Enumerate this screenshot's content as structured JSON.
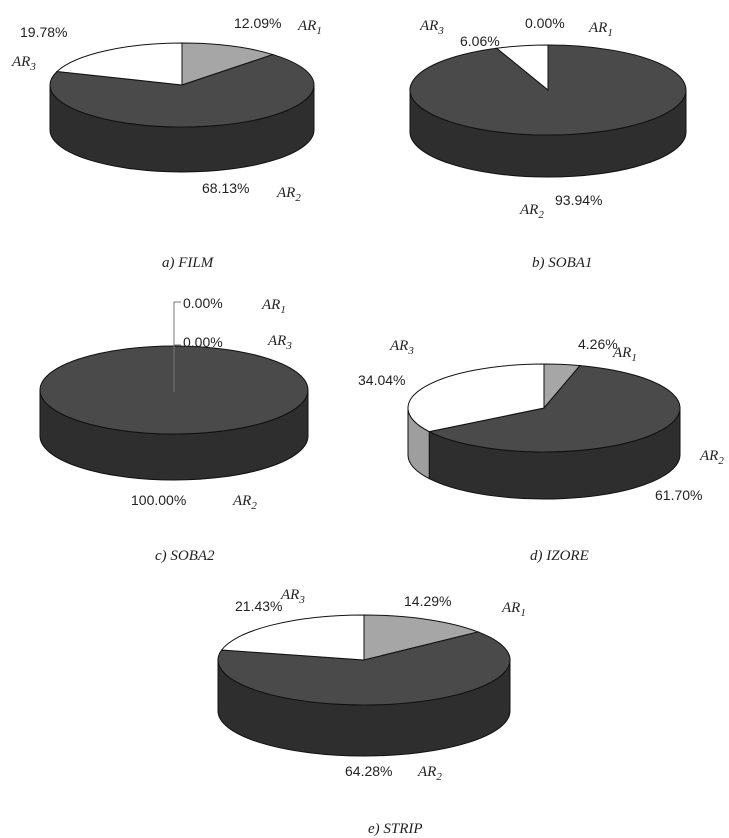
{
  "chart_data": [
    {
      "type": "pie",
      "caption": "a) FILM",
      "slices": [
        {
          "label": "AR1",
          "value": 12.09,
          "value_label": "12.09%",
          "color": "#a6a6a6"
        },
        {
          "label": "AR2",
          "value": 68.13,
          "value_label": "68.13%",
          "color": "#4a4a4a"
        },
        {
          "label": "AR3",
          "value": 19.78,
          "value_label": "19.78%",
          "color": "#ffffff"
        }
      ]
    },
    {
      "type": "pie",
      "caption": "b) SOBA1",
      "slices": [
        {
          "label": "AR1",
          "value": 0.0,
          "value_label": "0.00%",
          "color": "#a6a6a6"
        },
        {
          "label": "AR2",
          "value": 93.94,
          "value_label": "93.94%",
          "color": "#4a4a4a"
        },
        {
          "label": "AR3",
          "value": 6.06,
          "value_label": "6.06%",
          "color": "#ffffff"
        }
      ]
    },
    {
      "type": "pie",
      "caption": "c) SOBA2",
      "slices": [
        {
          "label": "AR1",
          "value": 0.0,
          "value_label": "0.00%",
          "color": "#a6a6a6"
        },
        {
          "label": "AR2",
          "value": 100.0,
          "value_label": "100.00%",
          "color": "#4a4a4a"
        },
        {
          "label": "AR3",
          "value": 0.0,
          "value_label": "0.00%",
          "color": "#ffffff"
        }
      ]
    },
    {
      "type": "pie",
      "caption": "d) IZORE",
      "slices": [
        {
          "label": "AR1",
          "value": 4.26,
          "value_label": "4.26%",
          "color": "#a6a6a6"
        },
        {
          "label": "AR2",
          "value": 61.7,
          "value_label": "61.70%",
          "color": "#4a4a4a"
        },
        {
          "label": "AR3",
          "value": 34.04,
          "value_label": "34.04%",
          "color": "#ffffff"
        }
      ]
    },
    {
      "type": "pie",
      "caption": "e) STRIP",
      "slices": [
        {
          "label": "AR1",
          "value": 14.29,
          "value_label": "14.29%",
          "color": "#a6a6a6"
        },
        {
          "label": "AR2",
          "value": 64.28,
          "value_label": "64.28%",
          "color": "#4a4a4a"
        },
        {
          "label": "AR3",
          "value": 21.43,
          "value_label": "21.43%",
          "color": "#ffffff"
        }
      ]
    }
  ]
}
